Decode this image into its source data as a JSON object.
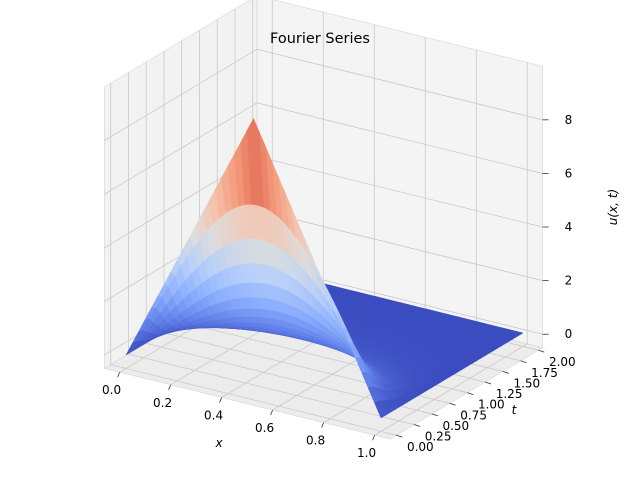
{
  "chart_data": {
    "type": "surface",
    "title": "Fourier Series",
    "xlabel": "x",
    "ylabel": "t",
    "zlabel": "u(x, t)",
    "colormap": "coolwarm",
    "grid": true,
    "xlim": [
      0,
      1
    ],
    "ylim": [
      0,
      2
    ],
    "zlim": [
      0,
      10
    ],
    "x_ticks": [
      "0.0",
      "0.2",
      "0.4",
      "0.6",
      "0.8",
      "1.0"
    ],
    "x_tick_values": [
      0,
      0.2,
      0.4,
      0.6,
      0.8,
      1.0
    ],
    "y_ticks": [
      "0.00",
      "0.25",
      "0.50",
      "0.75",
      "1.00",
      "1.25",
      "1.50",
      "1.75",
      "2.00"
    ],
    "y_tick_values": [
      0,
      0.25,
      0.5,
      0.75,
      1.0,
      1.25,
      1.5,
      1.75,
      2.0
    ],
    "z_ticks": [
      "0",
      "2",
      "4",
      "6",
      "8"
    ],
    "z_tick_values": [
      0,
      2,
      4,
      6,
      8
    ],
    "surface": {
      "description_initial": "u(x,0) triangular peak at x=0.5",
      "peak_value": 10,
      "peak_x": 0.5,
      "sample_points": [
        {
          "x": 0.0,
          "t": 0.0,
          "u": 0
        },
        {
          "x": 0.5,
          "t": 0.0,
          "u": 10
        },
        {
          "x": 1.0,
          "t": 0.0,
          "u": 0
        },
        {
          "x": 0.5,
          "t": 0.25,
          "u": 2.8
        },
        {
          "x": 0.5,
          "t": 0.5,
          "u": 0.5
        },
        {
          "x": 0.5,
          "t": 2.0,
          "u": 0
        }
      ]
    }
  }
}
